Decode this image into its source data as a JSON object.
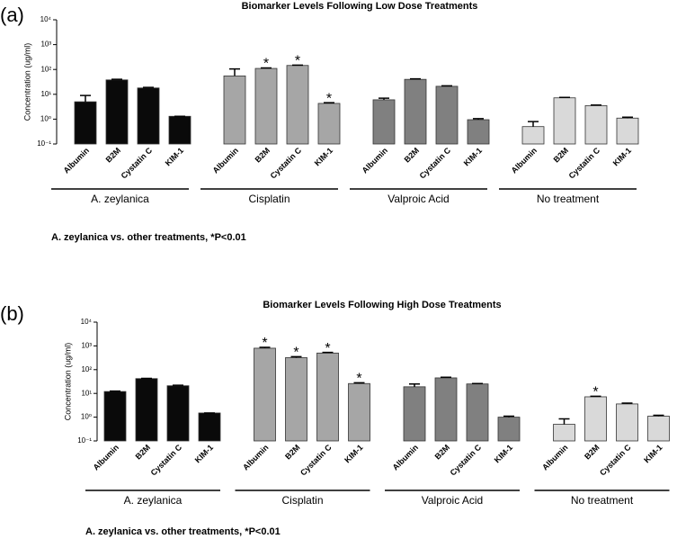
{
  "chart_data": [
    {
      "type": "bar",
      "panel_label": "(a)",
      "title": "Biomarker Levels Following Low Dose Treatments",
      "ylabel": "Concentration (ug/ml)",
      "log_scale": true,
      "categories": [
        "Albumin",
        "B2M",
        "Cystatin C",
        "KIM-1"
      ],
      "series": [
        {
          "name": "A. zeylanica",
          "color": "#0a0a0a",
          "values": [
            5,
            38,
            18,
            1.3
          ],
          "errors": [
            4,
            2,
            1,
            0
          ],
          "significant": [
            false,
            false,
            false,
            false
          ]
        },
        {
          "name": "Cisplatin",
          "color": "#a6a6a6",
          "values": [
            55,
            110,
            145,
            4.3
          ],
          "errors": [
            50,
            5,
            5,
            0.3
          ],
          "significant": [
            false,
            true,
            true,
            true
          ]
        },
        {
          "name": "Valproic Acid",
          "color": "#808080",
          "values": [
            6,
            40,
            21,
            0.95
          ],
          "errors": [
            1,
            2,
            1,
            0.1
          ],
          "significant": [
            false,
            false,
            false,
            false
          ]
        },
        {
          "name": "No treatment",
          "color": "#d9d9d9",
          "values": [
            0.5,
            7.2,
            3.5,
            1.1
          ],
          "errors": [
            0.3,
            0.3,
            0.2,
            0.1
          ],
          "significant": [
            false,
            false,
            false,
            false
          ]
        }
      ],
      "significance_mark": "*",
      "ylim": [
        0.1,
        10000
      ],
      "yticks": [
        {
          "value": 0.1,
          "label": "10⁻¹"
        },
        {
          "value": 1,
          "label": "10⁰"
        },
        {
          "value": 10,
          "label": "10¹"
        },
        {
          "value": 100,
          "label": "10²"
        },
        {
          "value": 1000,
          "label": "10³"
        },
        {
          "value": 10000,
          "label": "10⁴"
        }
      ],
      "footnote": "A. zeylanica vs. other treatments, *P<0.01"
    },
    {
      "type": "bar",
      "panel_label": "(b)",
      "title": "Biomarker Levels Following High Dose Treatments",
      "ylabel": "Concentration (ug/ml)",
      "log_scale": true,
      "categories": [
        "Albumin",
        "B2M",
        "Cystatin C",
        "KIM-1"
      ],
      "series": [
        {
          "name": "A. zeylanica",
          "color": "#0a0a0a",
          "values": [
            12,
            42,
            21,
            1.5
          ],
          "errors": [
            0.5,
            1,
            1,
            0
          ],
          "significant": [
            false,
            false,
            false,
            false
          ]
        },
        {
          "name": "Cisplatin",
          "color": "#a6a6a6",
          "values": [
            800,
            320,
            500,
            26
          ],
          "errors": [
            70,
            30,
            30,
            2
          ],
          "significant": [
            true,
            true,
            true,
            true
          ]
        },
        {
          "name": "Valproic Acid",
          "color": "#808080",
          "values": [
            19,
            45,
            25,
            1.0
          ],
          "errors": [
            6,
            3,
            1,
            0.1
          ],
          "significant": [
            false,
            false,
            false,
            false
          ]
        },
        {
          "name": "No treatment",
          "color": "#d9d9d9",
          "values": [
            0.5,
            7.2,
            3.6,
            1.1
          ],
          "errors": [
            0.35,
            0.4,
            0.3,
            0.1
          ],
          "significant": [
            false,
            true,
            false,
            false
          ]
        }
      ],
      "significance_mark": "*",
      "ylim": [
        0.1,
        10000
      ],
      "yticks": [
        {
          "value": 0.1,
          "label": "10⁻¹"
        },
        {
          "value": 1,
          "label": "10⁰"
        },
        {
          "value": 10,
          "label": "10¹"
        },
        {
          "value": 100,
          "label": "10²"
        },
        {
          "value": 1000,
          "label": "10³"
        },
        {
          "value": 10000,
          "label": "10⁴"
        }
      ],
      "footnote": "A. zeylanica vs. other treatments, *P<0.01"
    }
  ]
}
